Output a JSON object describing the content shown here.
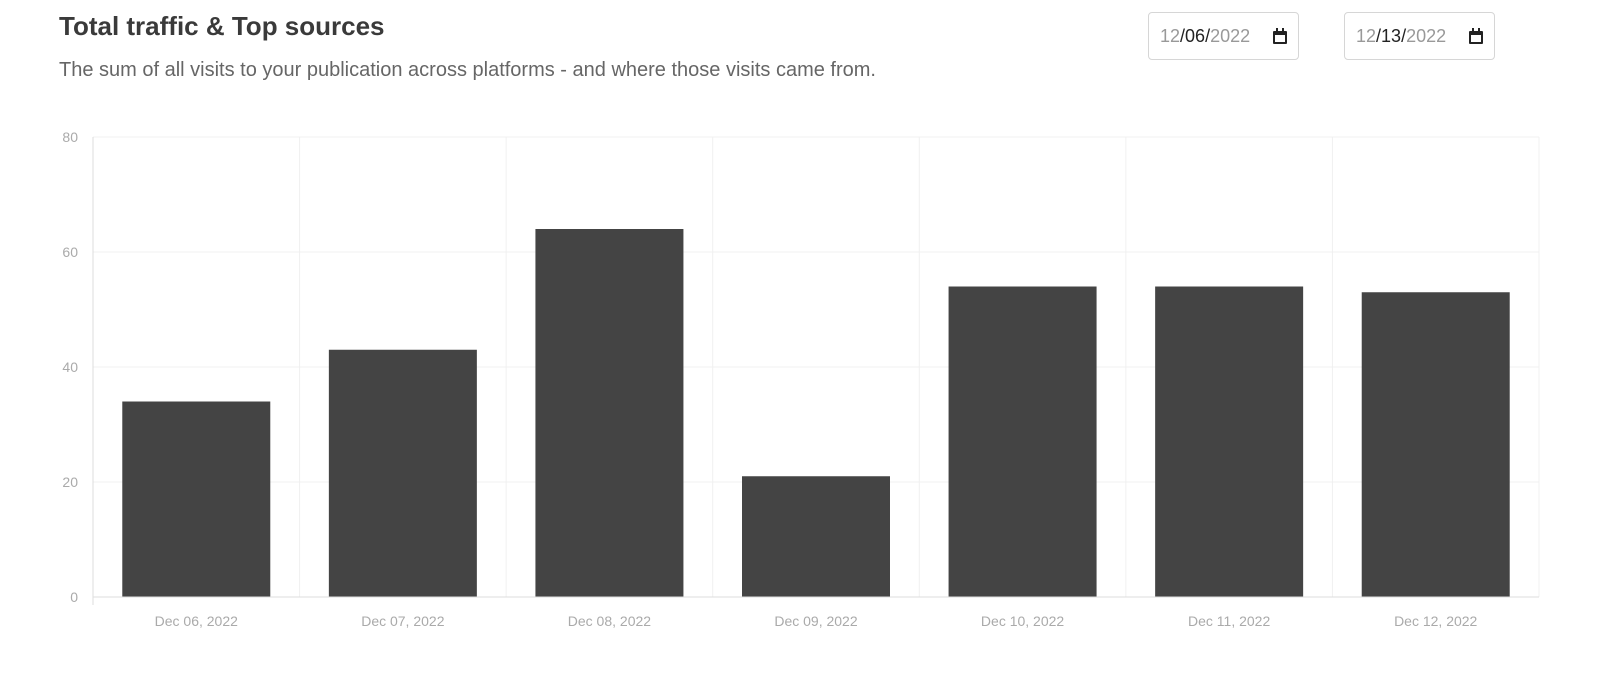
{
  "header": {
    "title": "Total traffic & Top sources",
    "subtitle": "The sum of all visits to your publication across platforms - and where those visits came from."
  },
  "date_range": {
    "start": {
      "month": "12",
      "day": "06",
      "year": "2022"
    },
    "end": {
      "month": "12",
      "day": "13",
      "year": "2022"
    }
  },
  "chart_data": {
    "type": "bar",
    "categories": [
      "Dec 06, 2022",
      "Dec 07, 2022",
      "Dec 08, 2022",
      "Dec 09, 2022",
      "Dec 10, 2022",
      "Dec 11, 2022",
      "Dec 12, 2022"
    ],
    "values": [
      34,
      43,
      64,
      21,
      54,
      54,
      53
    ],
    "yticks": [
      "0",
      "20",
      "40",
      "60",
      "80"
    ],
    "ylim": [
      0,
      80
    ],
    "grid": true,
    "bar_color": "#444444",
    "grid_color": "#f0f0f0",
    "axis_color": "#dddddd"
  }
}
